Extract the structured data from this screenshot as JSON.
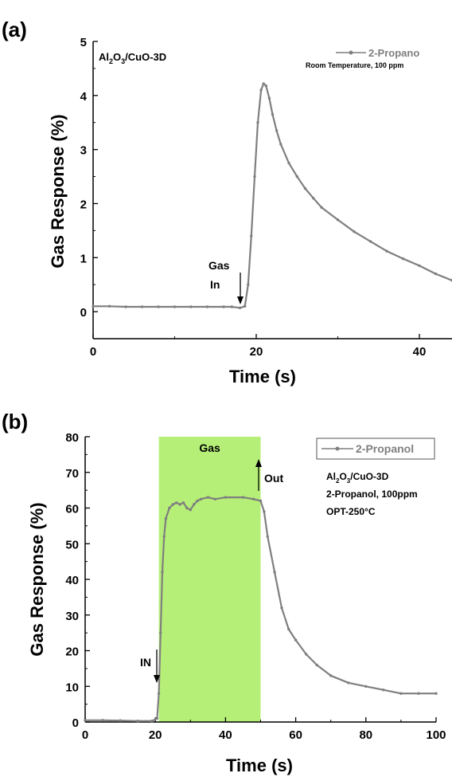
{
  "colors": {
    "line": "#7f7f7f",
    "axis": "#000000",
    "gas_band": "#b6ef78"
  },
  "chart_data": [
    {
      "type": "line",
      "panel_label": "(a)",
      "xlabel": "Time (s)",
      "ylabel": "Gas Response (%)",
      "xlim": [
        0,
        44
      ],
      "ylim": [
        -0.5,
        5
      ],
      "xticks": [
        0,
        20,
        40
      ],
      "yticks": [
        0,
        1,
        2,
        3,
        4,
        5
      ],
      "grid": false,
      "legend": {
        "position": "top-right",
        "entries": [
          "2-Propano"
        ]
      },
      "annotations": {
        "material": "Al2O3/CuO-3D",
        "condition": "Room Temperature, 100 ppm",
        "gas_in_line1": "Gas",
        "gas_in_line2": "In"
      },
      "series": [
        {
          "name": "2-Propano",
          "x": [
            0,
            2,
            4,
            6,
            8,
            10,
            12,
            14,
            16,
            17,
            18,
            18.6,
            19,
            19.4,
            19.8,
            20.2,
            20.6,
            20.9,
            21.2,
            21.6,
            22,
            22.5,
            23,
            24,
            25,
            26,
            27,
            28,
            30,
            32,
            34,
            36,
            38,
            40,
            42,
            44
          ],
          "y": [
            0.1,
            0.1,
            0.09,
            0.09,
            0.09,
            0.09,
            0.09,
            0.09,
            0.09,
            0.09,
            0.07,
            0.1,
            0.5,
            1.4,
            2.5,
            3.5,
            4.1,
            4.22,
            4.18,
            3.95,
            3.65,
            3.35,
            3.1,
            2.75,
            2.5,
            2.28,
            2.1,
            1.93,
            1.7,
            1.48,
            1.3,
            1.12,
            0.98,
            0.85,
            0.7,
            0.58
          ]
        }
      ]
    },
    {
      "type": "line",
      "panel_label": "(b)",
      "xlabel": "Time (s)",
      "ylabel": "Gas Response (%)",
      "xlim": [
        0,
        100
      ],
      "ylim": [
        0,
        80
      ],
      "xticks": [
        0,
        20,
        40,
        60,
        80,
        100
      ],
      "yticks": [
        0,
        10,
        20,
        30,
        40,
        50,
        60,
        70,
        80
      ],
      "grid": false,
      "legend": {
        "position": "top-right",
        "entries": [
          "2-Propanol"
        ]
      },
      "shaded_region": {
        "label": "Gas",
        "x_start": 21,
        "x_end": 50
      },
      "annotations": {
        "material": "Al2O3/CuO-3D",
        "gas_conc": "2-Propanol, 100ppm",
        "temperature": "OPT-250°C",
        "in_label": "IN",
        "out_label": "Out"
      },
      "series": [
        {
          "name": "2-Propanol",
          "x": [
            0,
            5,
            10,
            15,
            19,
            20.5,
            21,
            21.5,
            22,
            22.5,
            23,
            24,
            25,
            26,
            27,
            28,
            29,
            30,
            31,
            32,
            33,
            35,
            37,
            40,
            45,
            48,
            50,
            51,
            52,
            54,
            56,
            58,
            60,
            63,
            66,
            70,
            75,
            80,
            85,
            90,
            95,
            100
          ],
          "y": [
            0.5,
            0.5,
            0.4,
            0.3,
            0.3,
            1,
            8,
            25,
            42,
            52,
            57,
            60,
            61,
            61.5,
            61,
            61.5,
            60,
            59.5,
            61,
            62,
            62.5,
            63,
            62.5,
            63,
            63,
            62.5,
            62,
            59,
            52,
            42,
            32,
            26,
            23,
            19,
            16,
            13,
            11,
            10,
            9,
            8,
            8,
            8
          ]
        }
      ]
    }
  ]
}
